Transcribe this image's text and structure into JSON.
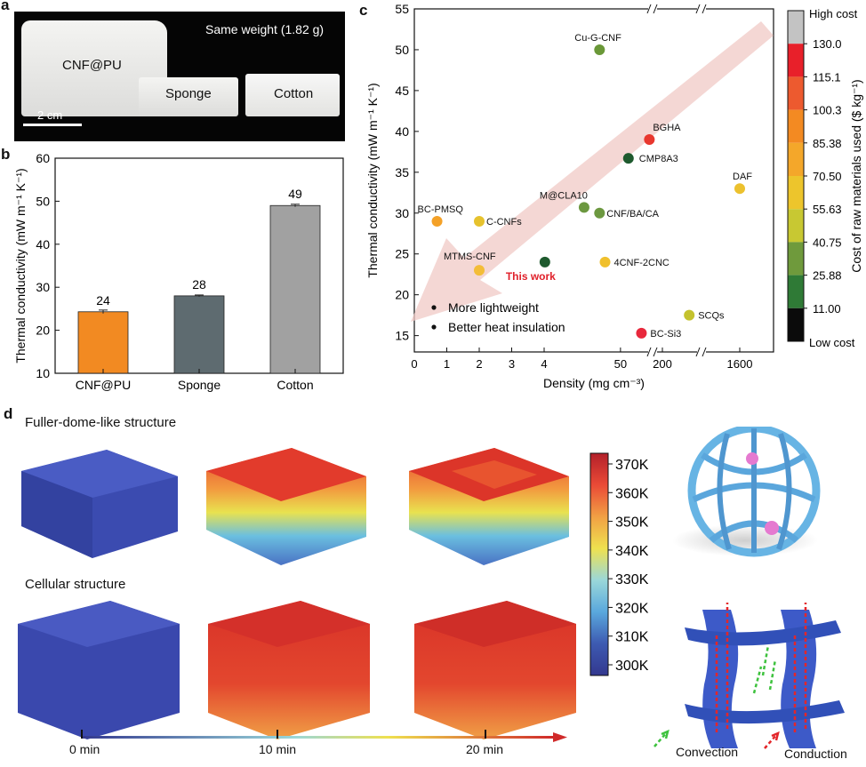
{
  "panel_labels": {
    "a": "a",
    "b": "b",
    "c": "c",
    "d": "d"
  },
  "photo": {
    "caption": "Same weight (1.82 g)",
    "samples": [
      "CNF@PU",
      "Sponge",
      "Cotton"
    ],
    "scale_bar": "2 cm"
  },
  "chart_data": [
    {
      "type": "bar",
      "categories": [
        "CNF@PU",
        "Sponge",
        "Cotton"
      ],
      "values": [
        24.3,
        28.0,
        49.0
      ],
      "data_labels": [
        "24",
        "28",
        "49"
      ],
      "errors": [
        0.4,
        0.2,
        0.3
      ],
      "colors": [
        "#f28a22",
        "#5e6b70",
        "#a1a1a1"
      ],
      "ylabel": "Thermal conductivity (mW m⁻¹ K⁻¹)",
      "ylim": [
        10,
        60
      ],
      "yticks": [
        "10",
        "20",
        "30",
        "40",
        "50",
        "60"
      ],
      "grid": false
    },
    {
      "type": "scatter",
      "xlabel": "Density (mg cm⁻³)",
      "ylabel": "Thermal conductivity (mW m⁻¹ K⁻¹)",
      "x_axis": "broken axis: 0–4 linear, 4–200 log, break, 1600",
      "xticks": [
        "0",
        "1",
        "2",
        "3",
        "4",
        "50",
        "200",
        "1600"
      ],
      "yticks": [
        "15",
        "20",
        "25",
        "30",
        "35",
        "40",
        "45",
        "50",
        "55"
      ],
      "ylim": [
        13,
        55
      ],
      "points": [
        {
          "label": "Cu-G-CNF",
          "x": 25,
          "y": 50,
          "color": "#6a9838"
        },
        {
          "label": "BGHA",
          "x": 130,
          "y": 39,
          "color": "#e8372e"
        },
        {
          "label": "CMP8A3",
          "x": 65,
          "y": 36.7,
          "color": "#1e5a2e"
        },
        {
          "label": "DAF",
          "x": 1600,
          "y": 33,
          "color": "#ecc12e"
        },
        {
          "label": "M@CLA10",
          "x": 15,
          "y": 30.7,
          "color": "#6c9840"
        },
        {
          "label": "CNF/BA/CA",
          "x": 25,
          "y": 30,
          "color": "#6c9840"
        },
        {
          "label": "BC-PMSQ",
          "x": 0.7,
          "y": 29,
          "color": "#f4a127"
        },
        {
          "label": "C-CNFs",
          "x": 2,
          "y": 29,
          "color": "#e6c22e"
        },
        {
          "label": "This work",
          "x": 4.1,
          "y": 24,
          "color": "#1e5a2e"
        },
        {
          "label": "4CNF-2CNC",
          "x": 30,
          "y": 24,
          "color": "#f0c02c"
        },
        {
          "label": "MTMS-CNF",
          "x": 2,
          "y": 23,
          "color": "#f3bd38"
        },
        {
          "label": "SCQs",
          "x": 280,
          "y": 17.5,
          "color": "#c4c22e"
        },
        {
          "label": "BC-Si3",
          "x": 100,
          "y": 15.3,
          "color": "#e8283c"
        }
      ],
      "annotations": [
        "More lightweight",
        "Better heat insulation"
      ],
      "colorbar": {
        "label": "Cost of raw materials used ($ kg⁻¹)",
        "top": "High cost",
        "bottom": "Low cost",
        "ticks": [
          "130.0",
          "115.1",
          "100.3",
          "85.38",
          "70.50",
          "55.63",
          "40.75",
          "25.88",
          "11.00"
        ],
        "colors": [
          "#c3c3c3",
          "#e8202a",
          "#ed5a2f",
          "#f38a22",
          "#f4a72a",
          "#edc52c",
          "#c8c832",
          "#6f9a3c",
          "#2f7a36",
          "#0b0b0b"
        ]
      }
    },
    {
      "type": "heatmap",
      "colorbar_ticks": [
        "370K",
        "360K",
        "350K",
        "340K",
        "330K",
        "320K",
        "310K",
        "300K"
      ],
      "colors": [
        "#b3202a",
        "#ea4a36",
        "#f1a044",
        "#efe14f",
        "#9ad7d9",
        "#5aa8dd",
        "#3d5ab1",
        "#33388f"
      ]
    }
  ],
  "simulation": {
    "rows": [
      "Fuller-dome-like structure",
      "Cellular structure"
    ],
    "timeline": [
      "0 min",
      "10 min",
      "20 min"
    ],
    "legend": {
      "convection": "Convection",
      "conduction": "Conduction"
    }
  }
}
